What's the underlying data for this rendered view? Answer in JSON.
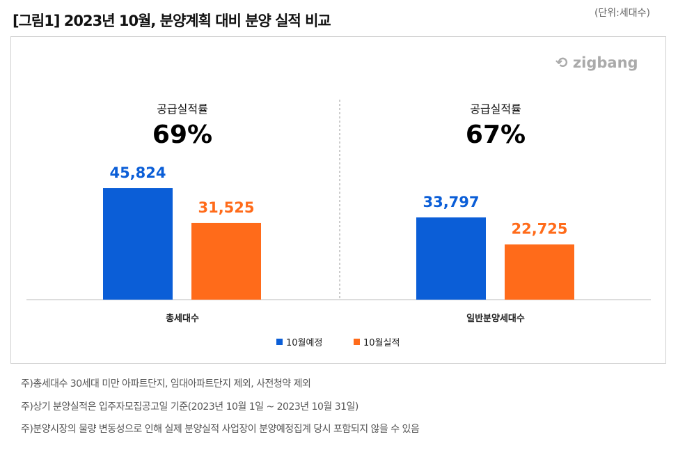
{
  "title": "[그림1] 2023년 10월, 분양계획 대비 분양 실적 비교",
  "unit": "(단위:세대수)",
  "logo": "zigbang",
  "notes": [
    "주)총세대수 30세대 미만 아파트단지, 임대아파트단지 제외, 사전청약 제외",
    "주)상기 분양실적은 입주자모집공고일 기준(2023년 10월 1일 ~ 2023년 10월 31일)",
    "주)분양시장의 물량 변동성으로 인해 실제 분양실적 사업장이 분양예정집계 당시 포함되지 않을 수 있음"
  ],
  "chart_data": {
    "type": "bar",
    "title": "[그림1] 2023년 10월, 분양계획 대비 분양 실적 비교",
    "categories": [
      "총세대수",
      "일반분양세대수"
    ],
    "series": [
      {
        "name": "10월예정",
        "color": "#0b5ed7",
        "values": [
          45824,
          33797
        ],
        "labels": [
          "45,824",
          "33,797"
        ]
      },
      {
        "name": "10월실적",
        "color": "#ff6b1a",
        "values": [
          31525,
          22725
        ],
        "labels": [
          "31,525",
          "22,725"
        ]
      }
    ],
    "annotations": [
      {
        "label": "공급실적률",
        "value": "69%"
      },
      {
        "label": "공급실적률",
        "value": "67%"
      }
    ],
    "ylim": [
      0,
      55000
    ],
    "grid": false,
    "legend": "bottom"
  }
}
